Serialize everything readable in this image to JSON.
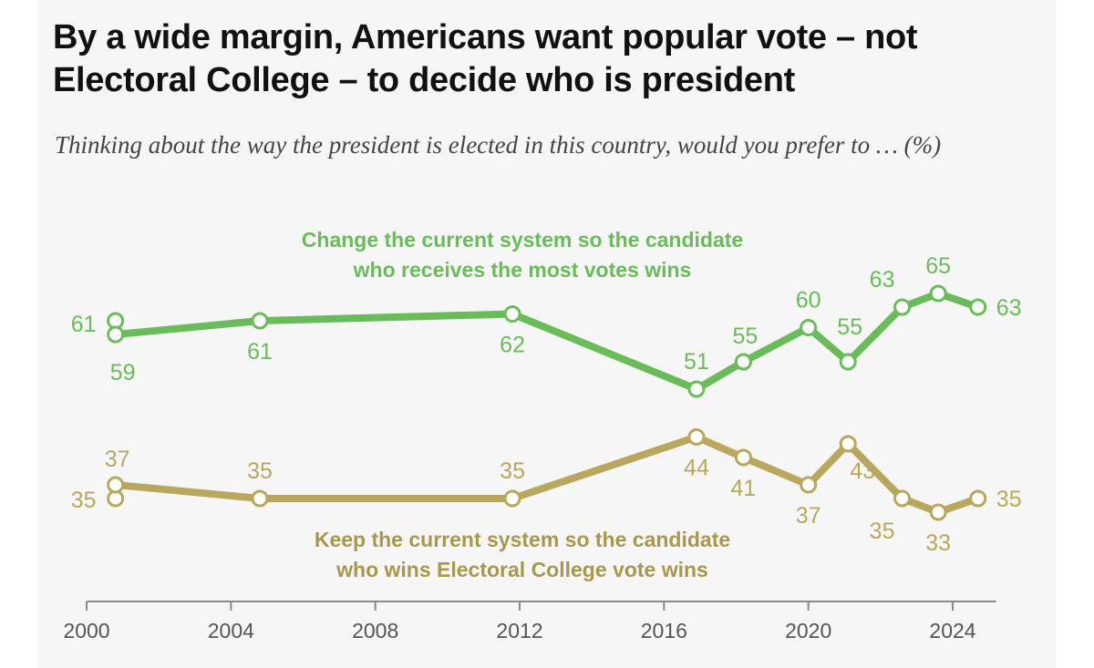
{
  "header": {
    "title": "By a wide margin, Americans want popular vote – not Electoral College – to decide who is president",
    "subtitle": "Thinking about the way the president is elected in this country, would you prefer to … (%)"
  },
  "colors": {
    "change": "#6abb5a",
    "keep": "#b8a75c",
    "keep_label": "#a8974c",
    "axis": "#8a8a8a",
    "panel": "#f6f6f6"
  },
  "chart_data": {
    "type": "line",
    "title": "By a wide margin, Americans want popular vote – not Electoral College – to decide who is president",
    "subtitle": "Thinking about the way the president is elected in this country, would you prefer to … (%)",
    "xlabel": "",
    "ylabel": "%",
    "xlim": [
      2000,
      2025
    ],
    "ylim": [
      25,
      70
    ],
    "x_ticks": [
      2000,
      2004,
      2008,
      2012,
      2016,
      2020,
      2024
    ],
    "grid": false,
    "legend": "inline",
    "series": [
      {
        "key": "change",
        "name": "Change the current system so the candidate who receives the most votes wins",
        "label_lines": [
          "Change the current system so the candidate",
          "who receives the most votes wins"
        ],
        "points": [
          {
            "x": 2000.8,
            "y": 61,
            "label": "61",
            "pos": "left"
          },
          {
            "x": 2000.8,
            "y": 59,
            "label": "59",
            "pos": "below"
          },
          {
            "x": 2004.8,
            "y": 61,
            "label": "61",
            "pos": "below"
          },
          {
            "x": 2011.8,
            "y": 62,
            "label": "62",
            "pos": "below"
          },
          {
            "x": 2016.9,
            "y": 51,
            "label": "51",
            "pos": "above"
          },
          {
            "x": 2018.2,
            "y": 55,
            "label": "55",
            "pos": "above"
          },
          {
            "x": 2020.0,
            "y": 60,
            "label": "60",
            "pos": "above"
          },
          {
            "x": 2021.1,
            "y": 55,
            "label": "55",
            "pos": "above"
          },
          {
            "x": 2022.6,
            "y": 63,
            "label": "63",
            "pos": "above-left"
          },
          {
            "x": 2023.6,
            "y": 65,
            "label": "65",
            "pos": "above"
          },
          {
            "x": 2024.7,
            "y": 63,
            "label": "63",
            "pos": "right"
          }
        ]
      },
      {
        "key": "keep",
        "name": "Keep the current system so the candidate who wins Electoral College vote wins",
        "label_lines": [
          "Keep the current system so the candidate",
          "who wins Electoral College vote wins"
        ],
        "points": [
          {
            "x": 2000.8,
            "y": 35,
            "label": "35",
            "pos": "left"
          },
          {
            "x": 2000.8,
            "y": 37,
            "label": "37",
            "pos": "above"
          },
          {
            "x": 2004.8,
            "y": 35,
            "label": "35",
            "pos": "above"
          },
          {
            "x": 2011.8,
            "y": 35,
            "label": "35",
            "pos": "above"
          },
          {
            "x": 2016.9,
            "y": 44,
            "label": "44",
            "pos": "below"
          },
          {
            "x": 2018.2,
            "y": 41,
            "label": "41",
            "pos": "below"
          },
          {
            "x": 2020.0,
            "y": 37,
            "label": "37",
            "pos": "below"
          },
          {
            "x": 2021.1,
            "y": 43,
            "label": "43",
            "pos": "below-right"
          },
          {
            "x": 2022.6,
            "y": 35,
            "label": "35",
            "pos": "below-left"
          },
          {
            "x": 2023.6,
            "y": 33,
            "label": "33",
            "pos": "below"
          },
          {
            "x": 2024.7,
            "y": 35,
            "label": "35",
            "pos": "right"
          }
        ]
      }
    ]
  }
}
